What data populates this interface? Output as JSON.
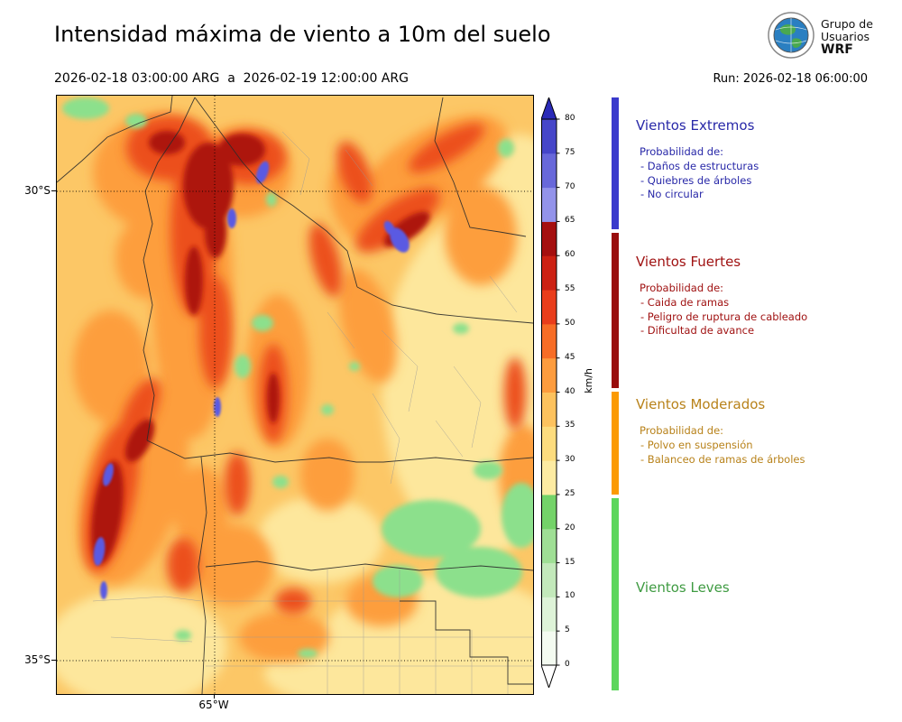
{
  "header": {
    "title": "Intensidad máxima de viento a 10m del suelo",
    "date_range": "2026-02-18 03:00:00 ARG  a  2026-02-19 12:00:00 ARG",
    "run_label": "Run: 2026-02-18 06:00:00",
    "logo": {
      "line1": "Grupo de",
      "line2": "Usuarios",
      "line3": "WRF"
    }
  },
  "chart_data": {
    "type": "heatmap",
    "title": "Intensidad máxima de viento a 10m del suelo",
    "valid_from": "2026-02-18 03:00:00 ARG",
    "valid_to": "2026-02-19 12:00:00 ARG",
    "model_run": "2026-02-18 06:00:00",
    "axes": {
      "lat_ticks": [
        "30°S",
        "35°S"
      ],
      "lon_ticks": [
        "65°W"
      ]
    },
    "colorbar": {
      "unit": "km/h",
      "levels": [
        0,
        5,
        10,
        15,
        20,
        25,
        30,
        35,
        40,
        45,
        50,
        55,
        60,
        65,
        70,
        75,
        80
      ],
      "colors": [
        "#f4fbf1",
        "#def3d8",
        "#c3e9bb",
        "#9fdf95",
        "#74d369",
        "#fdeba2",
        "#fddc7e",
        "#fdc25e",
        "#fd9c3e",
        "#f76d26",
        "#e93d1b",
        "#cc2113",
        "#a50f0f",
        "#9393ea",
        "#6868da",
        "#4646c9"
      ],
      "over_color": "#2a2ab8",
      "under_color": "#ffffff"
    },
    "legend": {
      "categories": [
        {
          "name": "Vientos Extremos",
          "text_color": "#2828a8",
          "bar_color": "#3a3acc",
          "prob_label": "Probabilidad de:",
          "items": [
            "- Daños de estructuras",
            "- Quiebres de árboles",
            "- No circular"
          ]
        },
        {
          "name": "Vientos Fuertes",
          "text_color": "#a01212",
          "bar_color": "#990d0d",
          "prob_label": "Probabilidad de:",
          "items": [
            "- Caida de ramas",
            "- Peligro de ruptura de cableado",
            "- Dificultad de avance"
          ]
        },
        {
          "name": "Vientos Moderados",
          "text_color": "#b8821a",
          "bar_color": "#fb9a02",
          "prob_label": "Probabilidad de:",
          "items": [
            "- Polvo en suspensión",
            "- Balanceo de ramas de árboles"
          ]
        },
        {
          "name": "Vientos Leves",
          "text_color": "#3f9b42",
          "bar_color": "#5cd65c",
          "prob_label": "",
          "items": []
        }
      ]
    },
    "field_blobs": {
      "base_color": "#fcc766",
      "layers": [
        {
          "name": "pale-yellow",
          "color": "#fde79c",
          "blur": "soft",
          "blobs": [
            [
              470,
              320,
              110,
              190,
              0
            ],
            [
              430,
              612,
              140,
              80,
              0
            ],
            [
              88,
              612,
              100,
              65,
              0
            ],
            [
              292,
              492,
              70,
              48,
              0
            ],
            [
              512,
              118,
              55,
              75,
              0
            ],
            [
              350,
              640,
              120,
              40,
              0
            ],
            [
              470,
              630,
              70,
              40,
              0
            ]
          ]
        },
        {
          "name": "orange",
          "color": "#fd9e3e",
          "blur": "soft",
          "blobs": [
            [
              150,
              210,
              45,
              170,
              0
            ],
            [
              115,
              85,
              75,
              65,
              0
            ],
            [
              205,
              85,
              55,
              50,
              0
            ],
            [
              85,
              430,
              55,
              115,
              15
            ],
            [
              415,
              85,
              95,
              45,
              -32
            ],
            [
              245,
              305,
              35,
              85,
              0
            ],
            [
              345,
              255,
              28,
              65,
              -15
            ],
            [
              195,
              520,
              45,
              45,
              0
            ],
            [
              470,
              155,
              40,
              55,
              0
            ],
            [
              60,
              300,
              42,
              62,
              0
            ],
            [
              300,
              420,
              30,
              40,
              0
            ],
            [
              360,
              560,
              40,
              28,
              0
            ],
            [
              252,
              600,
              50,
              28,
              0
            ],
            [
              160,
              460,
              30,
              50,
              0
            ],
            [
              518,
              420,
              28,
              55,
              0
            ],
            [
              330,
              120,
              25,
              45,
              -20
            ],
            [
              100,
              180,
              35,
              45,
              0
            ]
          ]
        },
        {
          "name": "red",
          "color": "#ec4f1e",
          "blur": "soft",
          "blobs": [
            [
              152,
              150,
              26,
              95,
              0
            ],
            [
              125,
              58,
              48,
              36,
              0
            ],
            [
              212,
              68,
              42,
              30,
              0
            ],
            [
              378,
              138,
              55,
              20,
              -35
            ],
            [
              60,
              445,
              26,
              85,
              12
            ],
            [
              240,
              330,
              16,
              55,
              0
            ],
            [
              176,
              262,
              18,
              62,
              0
            ],
            [
              298,
              182,
              15,
              42,
              -15
            ],
            [
              432,
              58,
              48,
              15,
              -30
            ],
            [
              200,
              430,
              14,
              35,
              0
            ],
            [
              92,
              350,
              16,
              40,
              25
            ],
            [
              140,
              520,
              18,
              30,
              0
            ],
            [
              330,
              85,
              16,
              36,
              -20
            ],
            [
              508,
              330,
              12,
              40,
              0
            ],
            [
              262,
              560,
              20,
              14,
              0
            ]
          ]
        },
        {
          "name": "dark-red",
          "color": "#ad1310",
          "blur": "mid",
          "blobs": [
            [
              168,
              100,
              28,
              48,
              0
            ],
            [
              205,
              60,
              26,
              18,
              0
            ],
            [
              388,
              148,
              30,
              11,
              -35
            ],
            [
              56,
              462,
              16,
              58,
              8
            ],
            [
              92,
              382,
              12,
              26,
              28
            ],
            [
              152,
              205,
              10,
              38,
              0
            ],
            [
              240,
              335,
              7,
              28,
              0
            ],
            [
              122,
              52,
              20,
              13,
              0
            ],
            [
              176,
              150,
              12,
              30,
              0
            ]
          ]
        },
        {
          "name": "green",
          "color": "#8ce08c",
          "blur": "mid",
          "blobs": [
            [
              32,
              14,
              26,
              12,
              0
            ],
            [
              88,
              28,
              12,
              8,
              0
            ],
            [
              228,
              252,
              12,
              9,
              0
            ],
            [
              206,
              300,
              9,
              13,
              0
            ],
            [
              415,
              480,
              55,
              32,
              0
            ],
            [
              468,
              528,
              48,
              28,
              0
            ],
            [
              378,
              538,
              28,
              18,
              0
            ],
            [
              515,
              465,
              22,
              36,
              0
            ],
            [
              248,
              428,
              9,
              7,
              0
            ],
            [
              300,
              348,
              7,
              6,
              0
            ],
            [
              448,
              258,
              9,
              6,
              0
            ],
            [
              498,
              58,
              9,
              10,
              0
            ],
            [
              140,
              598,
              9,
              6,
              0
            ],
            [
              278,
              618,
              11,
              5,
              0
            ],
            [
              238,
              115,
              6,
              8,
              0
            ],
            [
              330,
              300,
              6,
              5,
              0
            ],
            [
              478,
              415,
              16,
              10,
              0
            ]
          ]
        },
        {
          "name": "blue-extreme",
          "color": "#5a5ae2",
          "blur": "sharp",
          "blobs": [
            [
              228,
              85,
              6,
              13,
              20
            ],
            [
              194,
              136,
              5,
              11,
              0
            ],
            [
              380,
              160,
              9,
              15,
              -30
            ],
            [
              369,
              147,
              5,
              9,
              -30
            ],
            [
              178,
              345,
              4,
              11,
              0
            ],
            [
              57,
              420,
              5,
              13,
              15
            ],
            [
              47,
              505,
              6,
              16,
              8
            ],
            [
              52,
              548,
              4,
              10,
              0
            ]
          ]
        }
      ]
    }
  }
}
